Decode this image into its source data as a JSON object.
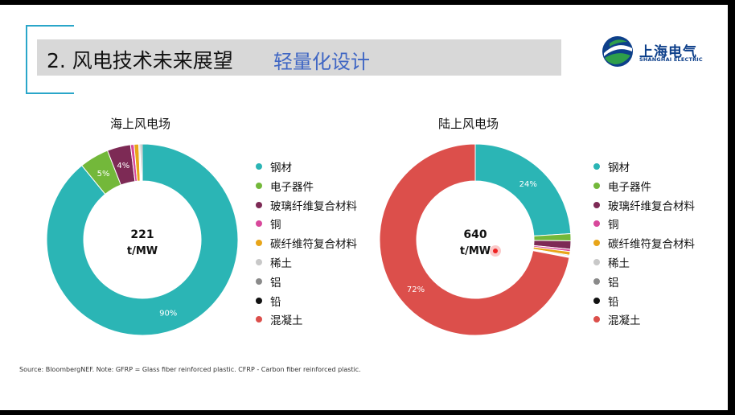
{
  "slide": {
    "title": "2. 风电技术未来展望",
    "subtitle": "轻量化设计",
    "source": "Source: BloombergNEF. Note: GFRP = Glass fiber reinforced plastic. CFRP - Carbon fiber reinforced plastic."
  },
  "logo": {
    "cn": "上海电气",
    "en": "SHANGHAI ELECTRIC",
    "icon": "shanghai-electric-logo-icon"
  },
  "colors": {
    "accent": "#2aa6c9",
    "title_sub": "#3f66c4",
    "logo": "#0d3f8a"
  },
  "chart_data": [
    {
      "type": "pie",
      "title": "海上风电场",
      "center_value": "221",
      "center_unit": "t/MW",
      "slices": [
        {
          "name": "钢材",
          "value": 90,
          "label": "90%",
          "color": "#2bb5b5"
        },
        {
          "name": "电子器件",
          "value": 5,
          "label": "5%",
          "color": "#73b83a"
        },
        {
          "name": "玻璃纤维复合材料",
          "value": 4,
          "label": "4%",
          "color": "#7d2a55"
        },
        {
          "name": "铜",
          "value": 0.6,
          "label": "",
          "color": "#d8489b"
        },
        {
          "name": "碳纤维符复合材料",
          "value": 0.8,
          "label": "",
          "color": "#e8a519"
        },
        {
          "name": "稀土",
          "value": 0.2,
          "label": "",
          "color": "#c8c8c8"
        },
        {
          "name": "铝",
          "value": 0.2,
          "label": "",
          "color": "#8a8a8a"
        },
        {
          "name": "铅",
          "value": 0.2,
          "label": "",
          "color": "#111111"
        },
        {
          "name": "混凝土",
          "value": 0,
          "label": "",
          "color": "#dc4f4b"
        }
      ]
    },
    {
      "type": "pie",
      "title": "陆上风电场",
      "center_value": "640",
      "center_unit": "t/MW",
      "slices": [
        {
          "name": "钢材",
          "value": 24,
          "label": "24%",
          "color": "#2bb5b5"
        },
        {
          "name": "电子器件",
          "value": 1.2,
          "label": "",
          "color": "#73b83a"
        },
        {
          "name": "玻璃纤维复合材料",
          "value": 1.4,
          "label": "",
          "color": "#7d2a55"
        },
        {
          "name": "铜",
          "value": 0.4,
          "label": "",
          "color": "#d8489b"
        },
        {
          "name": "碳纤维符复合材料",
          "value": 0.6,
          "label": "",
          "color": "#e8a519"
        },
        {
          "name": "稀土",
          "value": 0.2,
          "label": "",
          "color": "#c8c8c8"
        },
        {
          "name": "铝",
          "value": 0.1,
          "label": "",
          "color": "#8a8a8a"
        },
        {
          "name": "铅",
          "value": 0.1,
          "label": "",
          "color": "#111111"
        },
        {
          "name": "混凝土",
          "value": 72,
          "label": "72%",
          "color": "#dc4f4b"
        }
      ]
    }
  ],
  "legend_left": [
    {
      "label": "钢材",
      "color": "#2bb5b5"
    },
    {
      "label": "电子器件",
      "color": "#73b83a"
    },
    {
      "label": "玻璃纤维复合材料",
      "color": "#7d2a55"
    },
    {
      "label": "铜",
      "color": "#d8489b"
    },
    {
      "label": "碳纤维符复合材料",
      "color": "#e8a519"
    },
    {
      "label": "稀土",
      "color": "#c8c8c8"
    },
    {
      "label": "铝",
      "color": "#8a8a8a"
    },
    {
      "label": "铅",
      "color": "#111111"
    },
    {
      "label": "混凝土",
      "color": "#dc4f4b"
    }
  ],
  "legend_right": [
    {
      "label": "钢材",
      "color": "#2bb5b5"
    },
    {
      "label": "电子器件",
      "color": "#73b83a"
    },
    {
      "label": "玻璃纤维复合材料",
      "color": "#7d2a55"
    },
    {
      "label": "铜",
      "color": "#d8489b"
    },
    {
      "label": "碳纤维符复合材料",
      "color": "#e8a519"
    },
    {
      "label": "稀土",
      "color": "#c8c8c8"
    },
    {
      "label": "铝",
      "color": "#8a8a8a"
    },
    {
      "label": "铅",
      "color": "#111111"
    },
    {
      "label": "混凝土",
      "color": "#dc4f4b"
    }
  ]
}
